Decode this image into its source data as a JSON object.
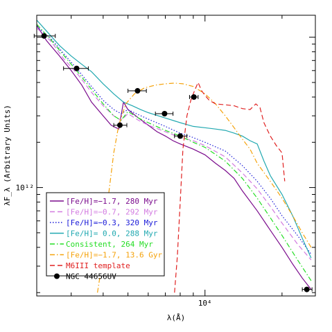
{
  "chart_data": {
    "type": "line",
    "xscale": "log",
    "yscale": "log",
    "xlim": [
      2200,
      27000
    ],
    "ylim": [
      190000000000.0,
      14000000000000.0
    ],
    "xlabel": "λ(Å)",
    "ylabel": "λF_λ (Arbitrary Units)",
    "x_tick_labels": [
      {
        "x": 10000,
        "label": "10⁴"
      }
    ],
    "y_tick_labels": [
      {
        "y": 1000000000000.0,
        "label": "10¹²"
      }
    ],
    "legend_position": "bottom-left",
    "series": [
      {
        "name": "[Fe/H]=−1.7, 280 Myr",
        "color": "#7a0a8c",
        "style": "solid",
        "points": [
          [
            2200,
            12000000000000.0
          ],
          [
            2400,
            9500000000000.0
          ],
          [
            2700,
            7500000000000.0
          ],
          [
            3000,
            6000000000000.0
          ],
          [
            3300,
            4800000000000.0
          ],
          [
            3600,
            3700000000000.0
          ],
          [
            4000,
            3000000000000.0
          ],
          [
            4300,
            2600000000000.0
          ],
          [
            4600,
            2450000000000.0
          ],
          [
            4800,
            3700000000000.0
          ],
          [
            5000,
            3300000000000.0
          ],
          [
            5500,
            2900000000000.0
          ],
          [
            6000,
            2600000000000.0
          ],
          [
            6500,
            2350000000000.0
          ],
          [
            7000,
            2200000000000.0
          ],
          [
            7500,
            2050000000000.0
          ],
          [
            8000,
            1950000000000.0
          ],
          [
            9000,
            1800000000000.0
          ],
          [
            10000,
            1650000000000.0
          ],
          [
            11000,
            1450000000000.0
          ],
          [
            12000,
            1300000000000.0
          ],
          [
            13000,
            1150000000000.0
          ],
          [
            14000,
            950000000000.0
          ],
          [
            16000,
            700000000000.0
          ],
          [
            18000,
            520000000000.0
          ],
          [
            20000,
            400000000000.0
          ],
          [
            22000,
            310000000000.0
          ],
          [
            24000,
            250000000000.0
          ],
          [
            26000,
            210000000000.0
          ]
        ]
      },
      {
        "name": "[Fe/H]=−0.7, 292 Myr",
        "color": "#d27ae0",
        "style": "dashed",
        "points": [
          [
            2200,
            11500000000000.0
          ],
          [
            2500,
            9400000000000.0
          ],
          [
            2800,
            7200000000000.0
          ],
          [
            3200,
            5600000000000.0
          ],
          [
            3600,
            4300000000000.0
          ],
          [
            4000,
            3500000000000.0
          ],
          [
            4400,
            3000000000000.0
          ],
          [
            4700,
            2800000000000.0
          ],
          [
            5000,
            3100000000000.0
          ],
          [
            5500,
            2800000000000.0
          ],
          [
            6000,
            2600000000000.0
          ],
          [
            7000,
            2350000000000.0
          ],
          [
            8000,
            2150000000000.0
          ],
          [
            9000,
            2050000000000.0
          ],
          [
            10000,
            1900000000000.0
          ],
          [
            12000,
            1600000000000.0
          ],
          [
            14000,
            1250000000000.0
          ],
          [
            16000,
            980000000000.0
          ],
          [
            18000,
            750000000000.0
          ],
          [
            20000,
            580000000000.0
          ],
          [
            23000,
            420000000000.0
          ],
          [
            26000,
            330000000000.0
          ]
        ]
      },
      {
        "name": "[Fe/H]=−0.3, 320 Myr",
        "color": "#1a1ad8",
        "style": "dotted",
        "points": [
          [
            2200,
            11800000000000.0
          ],
          [
            2500,
            9800000000000.0
          ],
          [
            2800,
            7800000000000.0
          ],
          [
            3200,
            6000000000000.0
          ],
          [
            3600,
            4700000000000.0
          ],
          [
            4000,
            3800000000000.0
          ],
          [
            4400,
            3300000000000.0
          ],
          [
            4700,
            3100000000000.0
          ],
          [
            5000,
            3300000000000.0
          ],
          [
            5500,
            3050000000000.0
          ],
          [
            6000,
            2850000000000.0
          ],
          [
            7000,
            2550000000000.0
          ],
          [
            8000,
            2300000000000.0
          ],
          [
            9000,
            2150000000000.0
          ],
          [
            10000,
            2000000000000.0
          ],
          [
            12000,
            1750000000000.0
          ],
          [
            14000,
            1400000000000.0
          ],
          [
            16000,
            1100000000000.0
          ],
          [
            18000,
            850000000000.0
          ],
          [
            20000,
            650000000000.0
          ],
          [
            23000,
            480000000000.0
          ],
          [
            26000,
            360000000000.0
          ]
        ]
      },
      {
        "name": "[Fe/H]= 0.0, 288 Myr",
        "color": "#20a8b0",
        "style": "solid",
        "points": [
          [
            2200,
            13000000000000.0
          ],
          [
            2400,
            11000000000000.0
          ],
          [
            2700,
            8800000000000.0
          ],
          [
            3000,
            7500000000000.0
          ],
          [
            3300,
            6600000000000.0
          ],
          [
            3600,
            5900000000000.0
          ],
          [
            4000,
            4900000000000.0
          ],
          [
            4400,
            4200000000000.0
          ],
          [
            4800,
            3700000000000.0
          ],
          [
            5200,
            3500000000000.0
          ],
          [
            5600,
            3300000000000.0
          ],
          [
            6000,
            3150000000000.0
          ],
          [
            7000,
            2900000000000.0
          ],
          [
            8000,
            2700000000000.0
          ],
          [
            9000,
            2550000000000.0
          ],
          [
            10000,
            2500000000000.0
          ],
          [
            11000,
            2450000000000.0
          ],
          [
            12000,
            2400000000000.0
          ],
          [
            13000,
            2300000000000.0
          ],
          [
            14000,
            2200000000000.0
          ],
          [
            15000,
            2050000000000.0
          ],
          [
            16000,
            1950000000000.0
          ],
          [
            17000,
            1500000000000.0
          ],
          [
            18000,
            1200000000000.0
          ],
          [
            20000,
            900000000000.0
          ],
          [
            22000,
            650000000000.0
          ],
          [
            24000,
            460000000000.0
          ],
          [
            26000,
            340000000000.0
          ]
        ]
      },
      {
        "name": "Consistent, 264 Myr",
        "color": "#22dd22",
        "style": "dashdot",
        "points": [
          [
            2200,
            12200000000000.0
          ],
          [
            2500,
            9600000000000.0
          ],
          [
            2800,
            7600000000000.0
          ],
          [
            3200,
            5800000000000.0
          ],
          [
            3600,
            4500000000000.0
          ],
          [
            4000,
            3600000000000.0
          ],
          [
            4400,
            3000000000000.0
          ],
          [
            4700,
            2800000000000.0
          ],
          [
            5000,
            3200000000000.0
          ],
          [
            5500,
            2900000000000.0
          ],
          [
            6000,
            2700000000000.0
          ],
          [
            7000,
            2400000000000.0
          ],
          [
            8000,
            2200000000000.0
          ],
          [
            9000,
            2000000000000.0
          ],
          [
            10000,
            1850000000000.0
          ],
          [
            12000,
            1500000000000.0
          ],
          [
            14000,
            1150000000000.0
          ],
          [
            16000,
            850000000000.0
          ],
          [
            18000,
            630000000000.0
          ],
          [
            20000,
            480000000000.0
          ],
          [
            23000,
            330000000000.0
          ],
          [
            26000,
            240000000000.0
          ]
        ]
      },
      {
        "name": "[Fe/H]=−1.7, 13.6 Gyr",
        "color": "#f5a20a",
        "style": "dashdot",
        "points": [
          [
            3800,
            200000000000.0
          ],
          [
            4000,
            350000000000.0
          ],
          [
            4200,
            900000000000.0
          ],
          [
            4400,
            1700000000000.0
          ],
          [
            4600,
            2600000000000.0
          ],
          [
            4900,
            3600000000000.0
          ],
          [
            5300,
            4200000000000.0
          ],
          [
            5800,
            4600000000000.0
          ],
          [
            6400,
            4800000000000.0
          ],
          [
            7000,
            4900000000000.0
          ],
          [
            7600,
            4950000000000.0
          ],
          [
            8200,
            4900000000000.0
          ],
          [
            9000,
            4700000000000.0
          ],
          [
            10000,
            4200000000000.0
          ],
          [
            11000,
            3600000000000.0
          ],
          [
            12000,
            3000000000000.0
          ],
          [
            13000,
            2500000000000.0
          ],
          [
            14000,
            2100000000000.0
          ],
          [
            15000,
            1800000000000.0
          ],
          [
            16000,
            1450000000000.0
          ],
          [
            18000,
            1100000000000.0
          ],
          [
            20000,
            850000000000.0
          ],
          [
            22000,
            650000000000.0
          ],
          [
            24000,
            500000000000.0
          ],
          [
            26000,
            400000000000.0
          ]
        ]
      },
      {
        "name": "M6III template",
        "color": "#e02020",
        "style": "dashed",
        "points": [
          [
            7600,
            200000000000.0
          ],
          [
            7800,
            350000000000.0
          ],
          [
            8000,
            800000000000.0
          ],
          [
            8200,
            1800000000000.0
          ],
          [
            8500,
            3000000000000.0
          ],
          [
            8800,
            3800000000000.0
          ],
          [
            9100,
            4400000000000.0
          ],
          [
            9400,
            5000000000000.0
          ],
          [
            9700,
            4400000000000.0
          ],
          [
            10000,
            4100000000000.0
          ],
          [
            10400,
            3800000000000.0
          ],
          [
            11000,
            3600000000000.0
          ],
          [
            12000,
            3550000000000.0
          ],
          [
            13000,
            3500000000000.0
          ],
          [
            14000,
            3350000000000.0
          ],
          [
            15000,
            3300000000000.0
          ],
          [
            15800,
            3600000000000.0
          ],
          [
            16400,
            3400000000000.0
          ],
          [
            17000,
            2700000000000.0
          ],
          [
            18000,
            2200000000000.0
          ],
          [
            19000,
            1900000000000.0
          ],
          [
            20000,
            1700000000000.0
          ],
          [
            20500,
            1100000000000.0
          ]
        ]
      }
    ],
    "observed": {
      "name": "NGC 44656UV",
      "color": "#000000",
      "points": [
        {
          "x": 2350,
          "y": 10200000000000.0,
          "xerr": [
            2150,
            2600
          ]
        },
        {
          "x": 3150,
          "y": 6200000000000.0,
          "xerr": [
            2800,
            3500
          ]
        },
        {
          "x": 4650,
          "y": 2600000000000.0,
          "xerr": [
            4400,
            4950
          ]
        },
        {
          "x": 5450,
          "y": 4400000000000.0,
          "xerr": [
            5000,
            5900
          ]
        },
        {
          "x": 6950,
          "y": 3100000000000.0,
          "xerr": [
            6400,
            7500
          ]
        },
        {
          "x": 8000,
          "y": 2200000000000.0,
          "xerr": [
            7600,
            8500
          ]
        },
        {
          "x": 9050,
          "y": 4000000000000.0,
          "xerr": [
            8700,
            9400
          ]
        },
        {
          "x": 25000,
          "y": 210000000000.0,
          "xerr": [
            24000,
            26200
          ]
        }
      ]
    }
  }
}
